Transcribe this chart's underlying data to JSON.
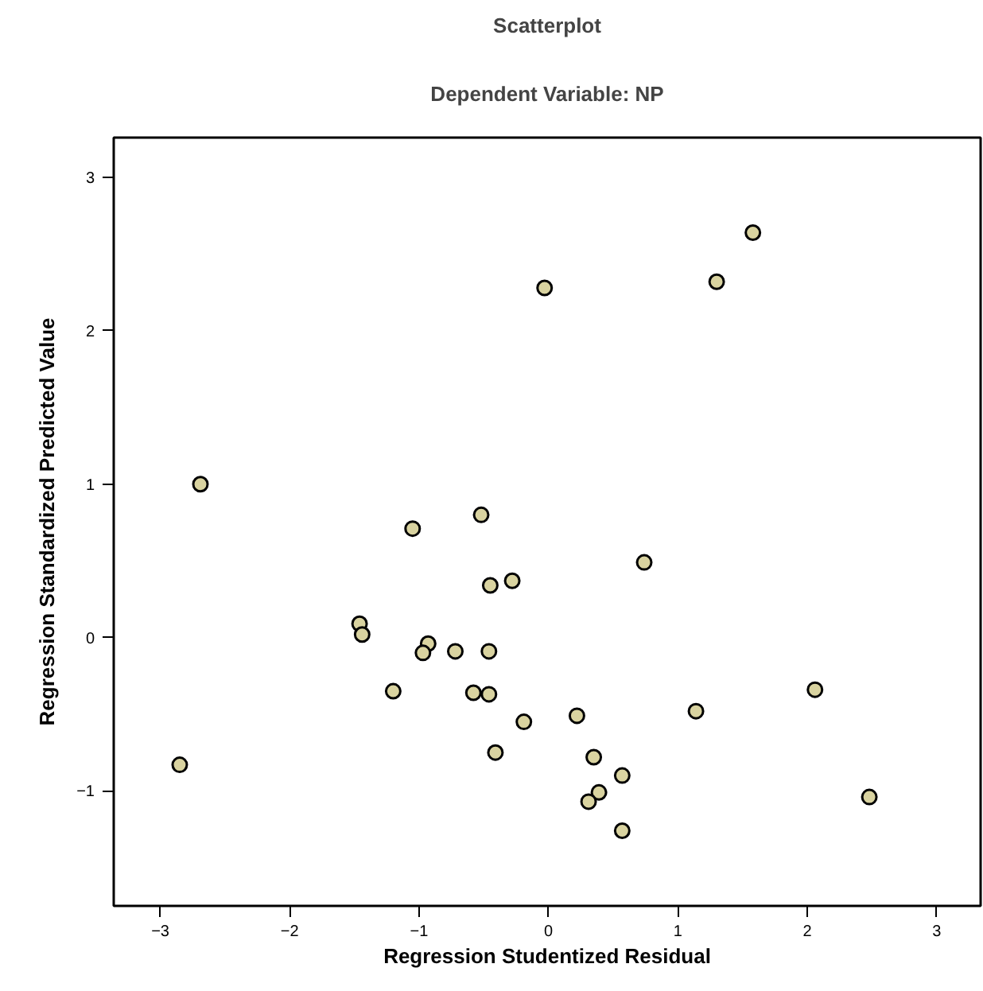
{
  "chart_data": {
    "type": "scatter",
    "title": "Scatterplot",
    "subtitle": "Dependent Variable: NP",
    "xlabel": "Regression Studentized Residual",
    "ylabel": "Regression Standardized Predicted Value",
    "x": [
      -2.69,
      -2.85,
      -1.05,
      -0.52,
      -1.46,
      -1.44,
      -0.93,
      -0.97,
      -0.72,
      -0.46,
      -0.45,
      -0.28,
      -1.2,
      -0.58,
      -0.46,
      -0.19,
      -0.41,
      -0.03,
      1.3,
      1.58,
      0.74,
      2.06,
      1.14,
      0.22,
      0.35,
      0.57,
      0.39,
      0.31,
      0.57,
      2.48
    ],
    "values": [
      1.0,
      -0.83,
      0.71,
      0.8,
      0.09,
      0.02,
      -0.04,
      -0.1,
      -0.09,
      -0.09,
      0.34,
      0.37,
      -0.35,
      -0.36,
      -0.37,
      -0.55,
      -0.75,
      2.28,
      2.32,
      2.64,
      0.49,
      -0.34,
      -0.48,
      -0.51,
      -0.78,
      -0.9,
      -1.01,
      -1.07,
      -1.26,
      -1.04
    ],
    "color": "#d9d3a0",
    "marker": "circle",
    "grid": false,
    "xlim": [
      -3.36,
      3.34
    ],
    "ylim": [
      -1.75,
      3.26
    ],
    "xticks": [
      -3,
      -2,
      -1,
      0,
      1,
      2,
      3
    ],
    "yticks": [
      -1,
      0,
      1,
      2,
      3
    ]
  }
}
